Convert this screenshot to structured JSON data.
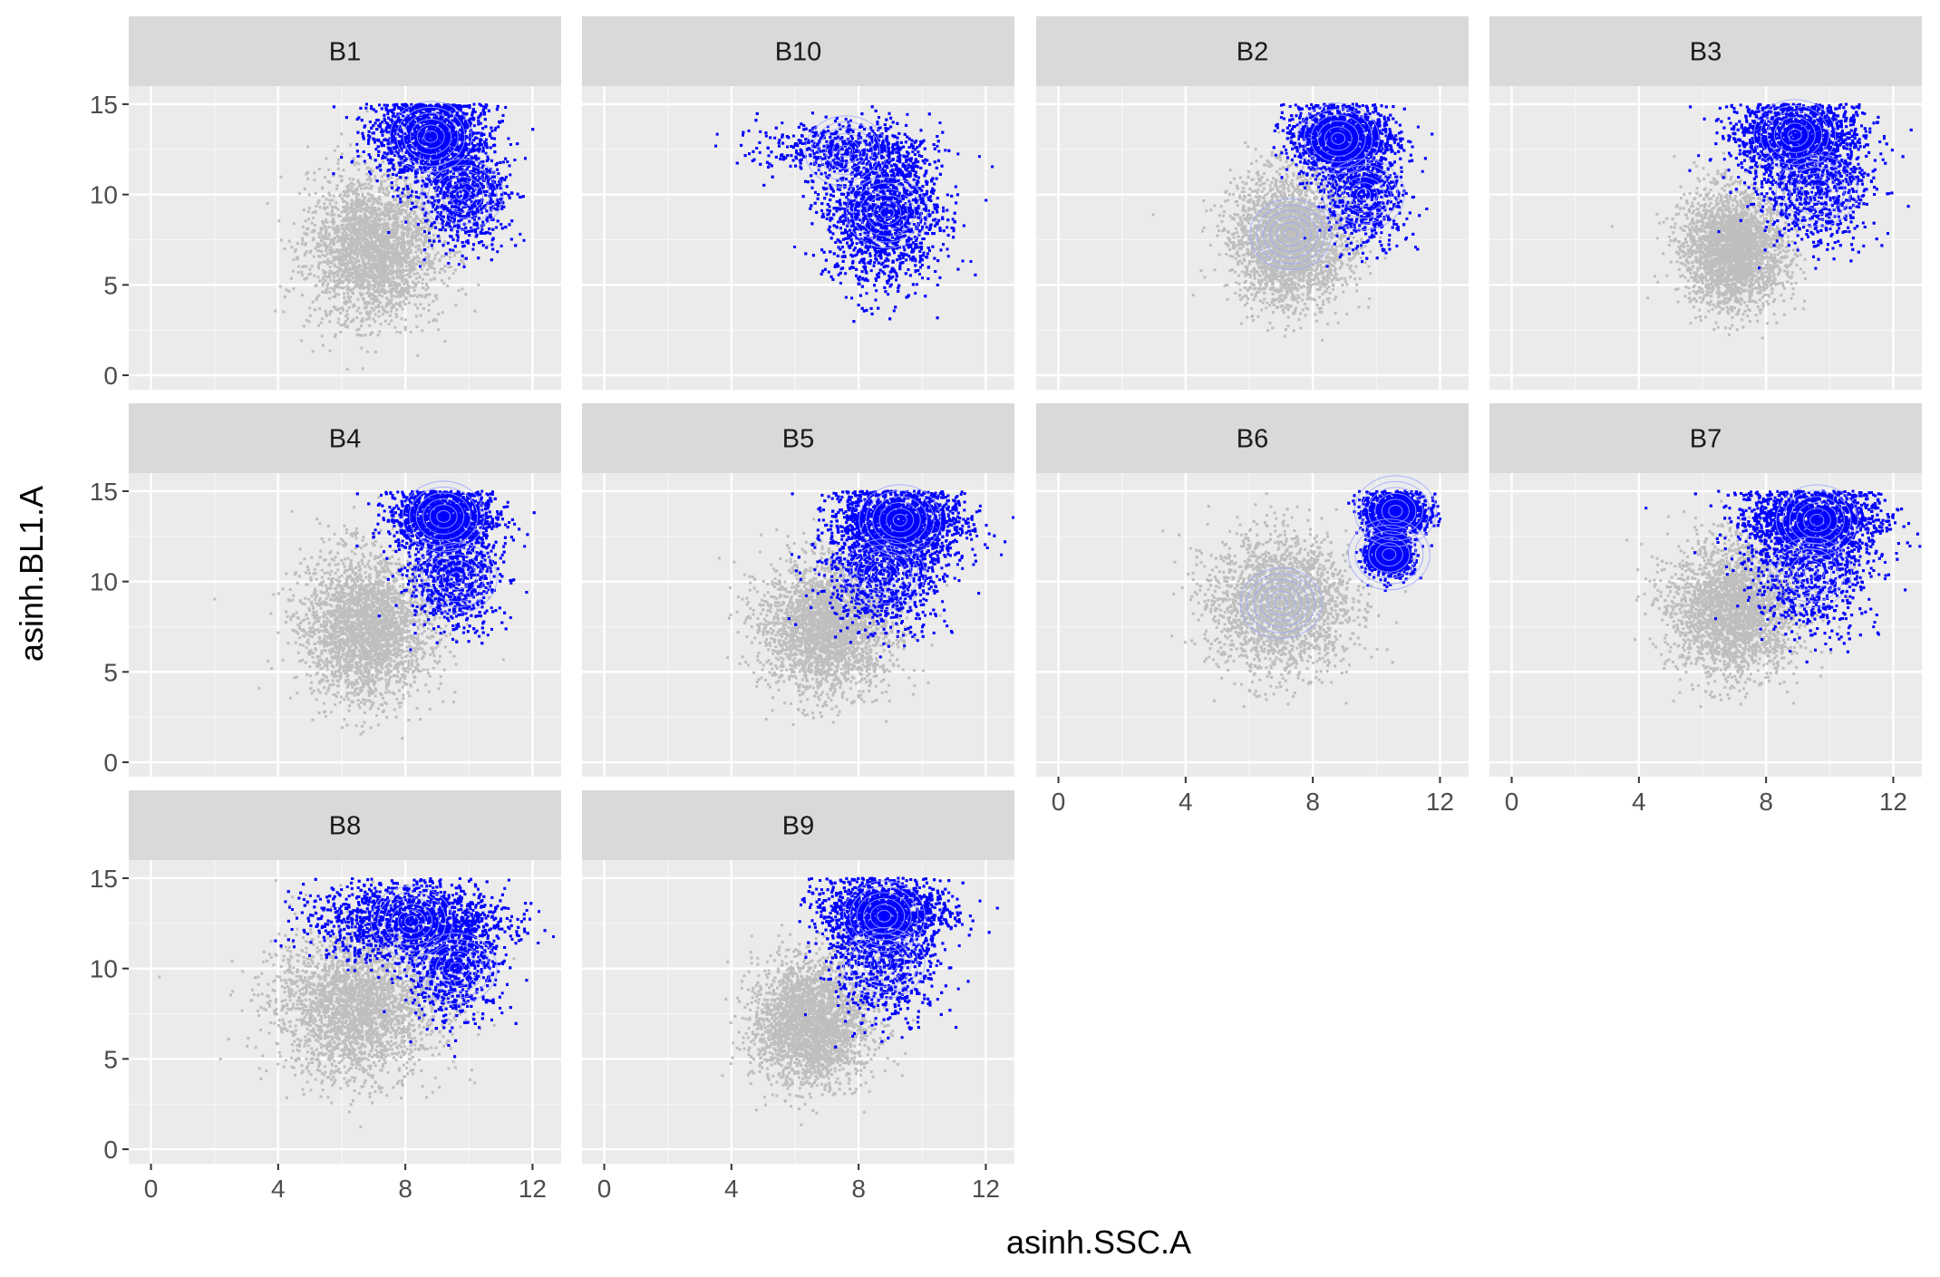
{
  "chart_data": {
    "type": "scatter",
    "layout": "faceted-grid",
    "xlabel": "asinh.SSC.A",
    "ylabel": "asinh.BL1.A",
    "xlim": [
      -0.7,
      12.9
    ],
    "ylim": [
      -0.8,
      16.0
    ],
    "x_ticks": [
      0,
      4,
      8,
      12
    ],
    "x_tick_labels": [
      "0",
      "4",
      "8",
      "12"
    ],
    "y_ticks": [
      0,
      5,
      10,
      15
    ],
    "y_tick_labels": [
      "0",
      "5",
      "10",
      "15"
    ],
    "grid": true,
    "legend": "none",
    "colors": {
      "ungated": "#bebebe",
      "gated": "#0000ff",
      "contour": "#9fa8ff",
      "panel_bg": "#ebebeb",
      "strip_bg": "#d9d9d9",
      "grid_major": "#ffffff"
    },
    "facets": [
      {
        "label": "B1",
        "ungated": [
          {
            "cx": 7.0,
            "cy": 7.0,
            "sx": 1.0,
            "sy": 2.0,
            "w": 1
          }
        ],
        "gated": [
          {
            "cx": 8.8,
            "cy": 13.2,
            "sx": 0.9,
            "sy": 1.2,
            "w": 2
          },
          {
            "cx": 9.8,
            "cy": 10.0,
            "sx": 0.7,
            "sy": 1.4,
            "w": 1
          }
        ],
        "contours": [
          [
            8.8,
            13.2
          ],
          [
            9.8,
            10.0
          ]
        ]
      },
      {
        "label": "B10",
        "ungated": [],
        "gated": [
          {
            "cx": 8.8,
            "cy": 9.0,
            "sx": 0.9,
            "sy": 2.0,
            "w": 3
          },
          {
            "cx": 7.5,
            "cy": 12.5,
            "sx": 1.3,
            "sy": 0.7,
            "w": 1
          }
        ],
        "contours": [
          [
            8.9,
            9.0
          ],
          [
            7.6,
            12.4
          ]
        ]
      },
      {
        "label": "B2",
        "ungated": [
          {
            "cx": 7.3,
            "cy": 7.5,
            "sx": 0.9,
            "sy": 1.8,
            "w": 1
          }
        ],
        "gated": [
          {
            "cx": 8.9,
            "cy": 13.0,
            "sx": 0.8,
            "sy": 1.0,
            "w": 2
          },
          {
            "cx": 9.6,
            "cy": 10.0,
            "sx": 0.6,
            "sy": 1.4,
            "w": 1
          }
        ],
        "contours": [
          [
            8.8,
            13.1
          ],
          [
            9.6,
            10.0
          ],
          [
            7.3,
            7.8
          ]
        ]
      },
      {
        "label": "B3",
        "ungated": [
          {
            "cx": 7.0,
            "cy": 7.0,
            "sx": 0.8,
            "sy": 1.6,
            "w": 1
          }
        ],
        "gated": [
          {
            "cx": 9.0,
            "cy": 13.2,
            "sx": 1.0,
            "sy": 1.1,
            "w": 2
          },
          {
            "cx": 9.5,
            "cy": 10.2,
            "sx": 0.9,
            "sy": 1.5,
            "w": 1
          }
        ],
        "contours": [
          [
            8.9,
            13.3
          ],
          [
            9.6,
            10.2
          ]
        ]
      },
      {
        "label": "B4",
        "ungated": [
          {
            "cx": 6.8,
            "cy": 7.5,
            "sx": 1.0,
            "sy": 2.0,
            "w": 1
          }
        ],
        "gated": [
          {
            "cx": 9.2,
            "cy": 13.5,
            "sx": 0.8,
            "sy": 0.9,
            "w": 2
          },
          {
            "cx": 9.5,
            "cy": 10.2,
            "sx": 0.7,
            "sy": 1.4,
            "w": 1
          }
        ],
        "contours": [
          [
            9.2,
            13.6
          ],
          [
            9.6,
            10.2
          ]
        ]
      },
      {
        "label": "B5",
        "ungated": [
          {
            "cx": 7.0,
            "cy": 7.5,
            "sx": 1.0,
            "sy": 1.8,
            "w": 1
          }
        ],
        "gated": [
          {
            "cx": 9.3,
            "cy": 13.2,
            "sx": 1.0,
            "sy": 1.0,
            "w": 2
          },
          {
            "cx": 8.8,
            "cy": 10.2,
            "sx": 0.9,
            "sy": 1.5,
            "w": 1
          }
        ],
        "contours": [
          [
            9.3,
            13.4
          ],
          [
            8.8,
            10.4
          ]
        ]
      },
      {
        "label": "B6",
        "ungated": [
          {
            "cx": 7.0,
            "cy": 8.8,
            "sx": 1.1,
            "sy": 1.9,
            "w": 1
          }
        ],
        "gated": [
          {
            "cx": 10.6,
            "cy": 13.8,
            "sx": 0.5,
            "sy": 0.6,
            "w": 1
          },
          {
            "cx": 10.4,
            "cy": 11.5,
            "sx": 0.35,
            "sy": 0.6,
            "w": 1
          }
        ],
        "contours": [
          [
            7.0,
            8.8
          ],
          [
            10.6,
            13.9
          ],
          [
            10.4,
            11.5
          ]
        ]
      },
      {
        "label": "B7",
        "ungated": [
          {
            "cx": 7.0,
            "cy": 8.5,
            "sx": 1.0,
            "sy": 1.8,
            "w": 1
          }
        ],
        "gated": [
          {
            "cx": 9.5,
            "cy": 13.3,
            "sx": 1.1,
            "sy": 1.0,
            "w": 2
          },
          {
            "cx": 9.4,
            "cy": 10.5,
            "sx": 0.9,
            "sy": 1.7,
            "w": 1
          }
        ],
        "contours": [
          [
            9.6,
            13.4
          ],
          [
            9.4,
            10.5
          ]
        ]
      },
      {
        "label": "B8",
        "ungated": [
          {
            "cx": 6.5,
            "cy": 8.0,
            "sx": 1.3,
            "sy": 2.0,
            "w": 1
          }
        ],
        "gated": [
          {
            "cx": 8.2,
            "cy": 12.5,
            "sx": 1.5,
            "sy": 1.1,
            "w": 2
          },
          {
            "cx": 9.5,
            "cy": 10.2,
            "sx": 0.7,
            "sy": 1.5,
            "w": 1
          }
        ],
        "contours": [
          [
            8.2,
            12.6
          ],
          [
            9.6,
            10.0
          ]
        ]
      },
      {
        "label": "B9",
        "ungated": [
          {
            "cx": 6.5,
            "cy": 7.0,
            "sx": 0.9,
            "sy": 1.7,
            "w": 1
          }
        ],
        "gated": [
          {
            "cx": 8.8,
            "cy": 13.0,
            "sx": 1.0,
            "sy": 1.0,
            "w": 2
          },
          {
            "cx": 8.8,
            "cy": 10.2,
            "sx": 0.8,
            "sy": 1.6,
            "w": 1
          }
        ],
        "contours": [
          [
            8.8,
            12.9
          ],
          [
            8.8,
            10.3
          ]
        ]
      }
    ]
  }
}
